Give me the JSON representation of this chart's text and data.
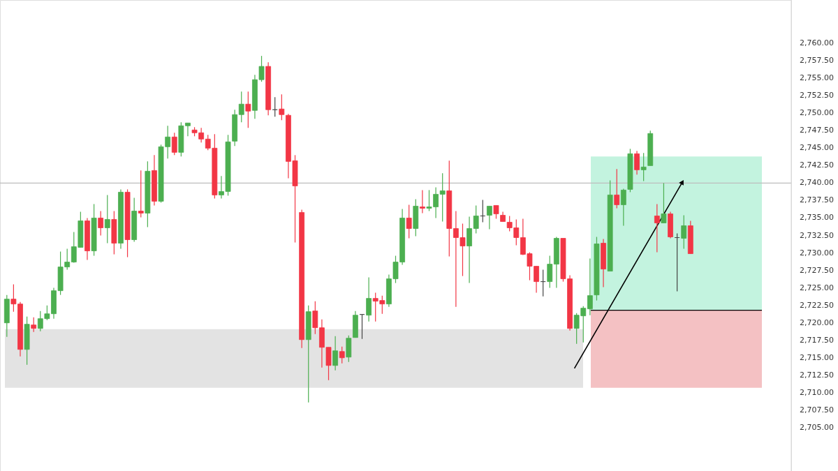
{
  "chart_data": {
    "type": "candlestick",
    "categories": [
      null,
      null,
      null,
      null,
      null,
      null,
      null,
      null,
      null,
      null,
      null,
      null,
      null,
      null,
      null,
      null,
      null,
      null,
      null,
      null,
      null,
      null,
      null,
      null,
      null,
      null,
      null,
      null,
      null,
      null,
      null,
      null,
      null,
      null,
      null,
      null,
      null,
      null,
      null,
      null,
      null,
      null,
      null,
      null,
      null,
      null,
      null,
      null,
      null,
      null,
      null,
      null,
      null,
      null,
      null,
      null,
      null,
      null,
      null,
      null,
      null,
      null,
      null,
      null,
      null,
      null,
      null,
      null,
      null,
      null,
      null,
      null,
      null,
      null,
      null,
      null,
      null,
      null,
      null,
      null,
      null,
      null,
      null,
      null,
      null,
      null,
      null,
      null,
      null,
      null,
      null,
      null,
      null,
      null,
      null,
      null,
      null,
      null,
      null,
      null,
      null,
      null,
      null,
      null,
      null,
      null,
      null,
      null,
      null,
      null,
      null,
      null,
      null,
      null,
      null,
      null,
      null
    ],
    "ohlc": [
      [
        2720.0,
        2724.0,
        2718.0,
        2723.4
      ],
      [
        2723.4,
        2725.5,
        2721.6,
        2722.7
      ],
      [
        2722.7,
        2723.0,
        2715.2,
        2716.2
      ],
      [
        2716.2,
        2720.9,
        2714.0,
        2719.8
      ],
      [
        2719.7,
        2720.8,
        2718.7,
        2719.2
      ],
      [
        2719.2,
        2721.7,
        2718.8,
        2720.6
      ],
      [
        2720.6,
        2722.5,
        2720.4,
        2721.3
      ],
      [
        2721.3,
        2725.0,
        2720.6,
        2724.6
      ],
      [
        2724.6,
        2730.2,
        2724.0,
        2728.0
      ],
      [
        2728.0,
        2730.6,
        2727.6,
        2728.7
      ],
      [
        2728.7,
        2733.0,
        2728.6,
        2730.9
      ],
      [
        2730.8,
        2735.9,
        2730.8,
        2734.6
      ],
      [
        2734.6,
        2735.0,
        2729.0,
        2730.3
      ],
      [
        2730.3,
        2737.0,
        2729.6,
        2735.0
      ],
      [
        2735.0,
        2736.0,
        2732.5,
        2733.6
      ],
      [
        2733.6,
        2738.3,
        2731.4,
        2734.8
      ],
      [
        2734.8,
        2736.0,
        2729.8,
        2731.4
      ],
      [
        2731.4,
        2739.1,
        2730.6,
        2738.7
      ],
      [
        2738.7,
        2739.1,
        2729.4,
        2731.9
      ],
      [
        2731.9,
        2737.9,
        2731.6,
        2736.0
      ],
      [
        2736.0,
        2741.8,
        2735.1,
        2735.7
      ],
      [
        2735.7,
        2743.1,
        2733.7,
        2741.7
      ],
      [
        2741.8,
        2744.0,
        2736.8,
        2737.4
      ],
      [
        2737.4,
        2745.5,
        2737.2,
        2745.2
      ],
      [
        2745.2,
        2748.2,
        2743.5,
        2746.6
      ],
      [
        2746.6,
        2747.2,
        2744.0,
        2744.4
      ],
      [
        2744.4,
        2748.7,
        2743.8,
        2748.2
      ],
      [
        2748.2,
        2748.6,
        2746.7,
        2748.6
      ],
      [
        2747.6,
        2748.0,
        2746.7,
        2747.2
      ],
      [
        2747.2,
        2747.9,
        2745.8,
        2746.3
      ],
      [
        2746.3,
        2746.9,
        2744.7,
        2745.0
      ],
      [
        2745.0,
        2747.0,
        2737.8,
        2738.3
      ],
      [
        2738.3,
        2741.0,
        2737.8,
        2738.8
      ],
      [
        2738.8,
        2746.9,
        2738.2,
        2745.9
      ],
      [
        2746.0,
        2750.5,
        2745.3,
        2749.8
      ],
      [
        2749.8,
        2753.1,
        2748.7,
        2751.3
      ],
      [
        2751.3,
        2753.1,
        2747.9,
        2750.3
      ],
      [
        2750.4,
        2755.5,
        2749.2,
        2754.8
      ],
      [
        2754.8,
        2758.2,
        2754.5,
        2756.7
      ],
      [
        2756.7,
        2757.3,
        2749.7,
        2750.5
      ],
      [
        2750.5,
        2752.3,
        2749.5,
        2750.5
      ],
      [
        2750.6,
        2752.7,
        2749.0,
        2749.8
      ],
      [
        2749.7,
        2749.9,
        2740.7,
        2743.1
      ],
      [
        2743.2,
        2744.0,
        2731.5,
        2739.6
      ],
      [
        2735.8,
        2736.2,
        2716.4,
        2717.6
      ],
      [
        2717.6,
        2722.5,
        2708.6,
        2721.6
      ],
      [
        2721.7,
        2723.1,
        2718.4,
        2719.3
      ],
      [
        2719.3,
        2720.5,
        2713.6,
        2716.5
      ],
      [
        2716.5,
        2716.5,
        2711.8,
        2713.9
      ],
      [
        2713.9,
        2718.1,
        2713.2,
        2716.0
      ],
      [
        2715.9,
        2716.6,
        2714.2,
        2715.0
      ],
      [
        2715.1,
        2718.2,
        2714.4,
        2717.8
      ],
      [
        2717.9,
        2721.7,
        2717.9,
        2721.1
      ],
      [
        2721.2,
        2721.2,
        2717.7,
        2721.2
      ],
      [
        2721.1,
        2726.5,
        2720.2,
        2723.5
      ],
      [
        2723.5,
        2724.3,
        2720.2,
        2723.1
      ],
      [
        2723.2,
        2723.9,
        2721.3,
        2722.7
      ],
      [
        2722.7,
        2726.9,
        2722.3,
        2726.3
      ],
      [
        2726.3,
        2729.6,
        2725.7,
        2728.7
      ],
      [
        2728.7,
        2736.3,
        2728.3,
        2735.0
      ],
      [
        2735.0,
        2736.9,
        2732.1,
        2733.5
      ],
      [
        2733.5,
        2737.7,
        2732.4,
        2736.7
      ],
      [
        2736.6,
        2739.0,
        2735.7,
        2736.4
      ],
      [
        2736.4,
        2739.0,
        2736.0,
        2736.6
      ],
      [
        2736.6,
        2739.4,
        2735.0,
        2738.4
      ],
      [
        2738.4,
        2741.4,
        2734.5,
        2738.9
      ],
      [
        2738.9,
        2743.2,
        2729.5,
        2733.5
      ],
      [
        2733.5,
        2736.0,
        2722.3,
        2732.2
      ],
      [
        2732.2,
        2734.2,
        2726.7,
        2731.0
      ],
      [
        2731.0,
        2735.2,
        2725.7,
        2733.5
      ],
      [
        2733.5,
        2736.8,
        2732.8,
        2735.3
      ],
      [
        2735.3,
        2737.6,
        2734.4,
        2735.3
      ],
      [
        2735.4,
        2736.7,
        2733.4,
        2736.7
      ],
      [
        2736.8,
        2736.8,
        2734.9,
        2735.6
      ],
      [
        2735.4,
        2735.9,
        2734.5,
        2734.5
      ],
      [
        2734.4,
        2735.3,
        2733.1,
        2733.6
      ],
      [
        2733.6,
        2734.8,
        2731.1,
        2732.2
      ],
      [
        2732.2,
        2734.9,
        2729.7,
        2729.8
      ],
      [
        2729.9,
        2730.1,
        2726.1,
        2728.1
      ],
      [
        2728.1,
        2728.1,
        2724.3,
        2725.9
      ],
      [
        2725.9,
        2727.6,
        2723.8,
        2725.9
      ],
      [
        2725.9,
        2729.6,
        2725.0,
        2728.4
      ],
      [
        2728.4,
        2732.3,
        2725.0,
        2732.1
      ],
      [
        2732.1,
        2732.1,
        2725.9,
        2726.3
      ],
      [
        2726.3,
        2726.8,
        2718.9,
        2719.2
      ],
      [
        2719.2,
        2721.4,
        2717.0,
        2721.1
      ],
      [
        2721.0,
        2722.4,
        2717.2,
        2722.1
      ],
      [
        2722.0,
        2729.2,
        2721.1,
        2723.9
      ],
      [
        2724.0,
        2732.3,
        2723.2,
        2731.3
      ],
      [
        2731.4,
        2732.0,
        2725.1,
        2727.7
      ],
      [
        2727.4,
        2740.4,
        2727.4,
        2738.3
      ],
      [
        2738.3,
        2742.0,
        2736.4,
        2736.9
      ],
      [
        2736.9,
        2739.2,
        2733.9,
        2739.0
      ],
      [
        2739.1,
        2744.9,
        2738.7,
        2744.2
      ],
      [
        2744.2,
        2744.6,
        2741.2,
        2741.9
      ],
      [
        2741.9,
        2744.3,
        2740.3,
        2742.3
      ],
      [
        2742.5,
        2747.5,
        2742.5,
        2747.1
      ],
      [
        2735.3,
        2737.0,
        2730.1,
        2734.3
      ],
      [
        2734.3,
        2740.0,
        2734.3,
        2735.6
      ],
      [
        2735.6,
        2735.9,
        2732.1,
        2732.3
      ],
      [
        2732.2,
        2732.8,
        2724.5,
        2732.2
      ],
      [
        2732.1,
        2735.4,
        2730.6,
        2733.9
      ],
      [
        2733.9,
        2734.6,
        2729.9,
        2729.9
      ],
      null,
      null,
      null,
      null,
      null,
      null,
      null,
      null,
      null,
      null,
      null,
      null,
      null,
      null
    ],
    "colors": [
      "#4caf50",
      "#f23645",
      "#f23645",
      "#4caf50",
      "#f23645",
      "#4caf50",
      "#4caf50",
      "#4caf50",
      "#4caf50",
      "#4caf50",
      "#4caf50",
      "#4caf50",
      "#f23645",
      "#4caf50",
      "#f23645",
      "#4caf50",
      "#f23645",
      "#4caf50",
      "#f23645",
      "#4caf50",
      "#f23645",
      "#4caf50",
      "#f23645",
      "#4caf50",
      "#4caf50",
      "#f23645",
      "#4caf50",
      "#4caf50",
      "#f23645",
      "#f23645",
      "#f23645",
      "#f23645",
      "#4caf50",
      "#4caf50",
      "#4caf50",
      "#4caf50",
      "#f23645",
      "#4caf50",
      "#4caf50",
      "#f23645",
      "#444444",
      "#f23645",
      "#f23645",
      "#f23645",
      "#f23645",
      "#4caf50",
      "#f23645",
      "#f23645",
      "#f23645",
      "#4caf50",
      "#f23645",
      "#4caf50",
      "#4caf50",
      "#444444",
      "#4caf50",
      "#f23645",
      "#f23645",
      "#4caf50",
      "#4caf50",
      "#4caf50",
      "#f23645",
      "#4caf50",
      "#f23645",
      "#4caf50",
      "#4caf50",
      "#4caf50",
      "#f23645",
      "#f23645",
      "#f23645",
      "#4caf50",
      "#4caf50",
      "#444444",
      "#4caf50",
      "#f23645",
      "#f23645",
      "#f23645",
      "#f23645",
      "#f23645",
      "#f23645",
      "#f23645",
      "#444444",
      "#4caf50",
      "#4caf50",
      "#f23645",
      "#f23645",
      "#4caf50",
      "#4caf50",
      "#4caf50",
      "#4caf50",
      "#f23645",
      "#4caf50",
      "#f23645",
      "#4caf50",
      "#4caf50",
      "#f23645",
      "#4caf50",
      "#4caf50",
      "#f23645",
      "#4caf50",
      "#f23645",
      "#444444",
      "#4caf50",
      "#f23645",
      null,
      null,
      null,
      null,
      null,
      null,
      null,
      null,
      null,
      null,
      null,
      null,
      null,
      null
    ],
    "ylim": [
      2698.8,
      2766.2
    ],
    "yticks": [
      {
        "value": 2705,
        "label": "2,705.00"
      },
      {
        "value": 2707.5,
        "label": "2,707.50"
      },
      {
        "value": 2710,
        "label": "2,710.00"
      },
      {
        "value": 2712.5,
        "label": "2,712.50"
      },
      {
        "value": 2715,
        "label": "2,715.00"
      },
      {
        "value": 2717.5,
        "label": "2,717.50"
      },
      {
        "value": 2720,
        "label": "2,720.00"
      },
      {
        "value": 2722.5,
        "label": "2,722.50"
      },
      {
        "value": 2725,
        "label": "2,725.00"
      },
      {
        "value": 2727.5,
        "label": "2,727.50"
      },
      {
        "value": 2730,
        "label": "2,730.00"
      },
      {
        "value": 2732.5,
        "label": "2,732.50"
      },
      {
        "value": 2735,
        "label": "2,735.00"
      },
      {
        "value": 2737.5,
        "label": "2,737.50"
      },
      {
        "value": 2740,
        "label": "2,740.00"
      },
      {
        "value": 2742.5,
        "label": "2,742.50"
      },
      {
        "value": 2745,
        "label": "2,745.00"
      },
      {
        "value": 2747.5,
        "label": "2,747.50"
      },
      {
        "value": 2750,
        "label": "2,750.00"
      },
      {
        "value": 2752.5,
        "label": "2,752.50"
      },
      {
        "value": 2755,
        "label": "2,755.00"
      },
      {
        "value": 2757.5,
        "label": "2,757.50"
      },
      {
        "value": 2760,
        "label": "2,760.00"
      }
    ],
    "ref_lines": [
      {
        "axis": "y",
        "value": 2740.0,
        "color": "#bdbdbd"
      },
      {
        "axis": "y",
        "value": 2721.8,
        "color": "#000000"
      }
    ],
    "bands": [
      {
        "axis": "y",
        "from": 2710.7,
        "to": 2719.1,
        "color": "#e0e0e0"
      },
      {
        "axis": "y",
        "from": 2721.8,
        "to": 2743.8,
        "color": "#bdf2dc"
      },
      {
        "axis": "y",
        "from": 2710.7,
        "to": 2721.8,
        "color": "#f3babd"
      }
    ],
    "tick_labels": "y"
  }
}
